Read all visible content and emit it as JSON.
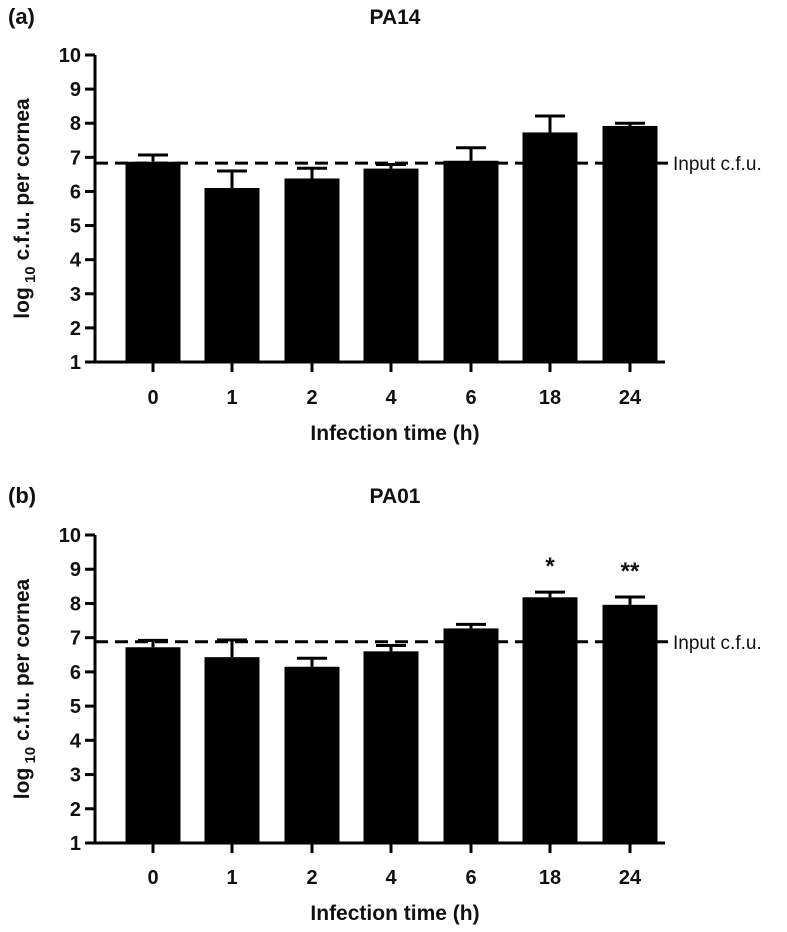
{
  "chart_data": [
    {
      "type": "bar",
      "panel_label": "(a)",
      "title": "PA14",
      "xlabel": "Infection time (h)",
      "ylabel_prefix": "log",
      "ylabel_sub": "10",
      "ylabel_suffix": " c.f.u. per cornea",
      "ylim": [
        1,
        10
      ],
      "yticks": [
        1,
        2,
        3,
        4,
        5,
        6,
        7,
        8,
        9,
        10
      ],
      "categories": [
        "0",
        "1",
        "2",
        "4",
        "6",
        "18",
        "24"
      ],
      "values": [
        6.87,
        6.1,
        6.38,
        6.67,
        6.9,
        7.73,
        7.92
      ],
      "errors": [
        0.2,
        0.5,
        0.3,
        0.12,
        0.38,
        0.48,
        0.08
      ],
      "significance": [
        "",
        "",
        "",
        "",
        "",
        "",
        ""
      ],
      "reference": {
        "value": 6.83,
        "label": "Input c.f.u."
      }
    },
    {
      "type": "bar",
      "panel_label": "(b)",
      "title": "PA01",
      "xlabel": "Infection time (h)",
      "ylabel_prefix": "log",
      "ylabel_sub": "10",
      "ylabel_suffix": " c.f.u. per cornea",
      "ylim": [
        1,
        10
      ],
      "yticks": [
        1,
        2,
        3,
        4,
        5,
        6,
        7,
        8,
        9,
        10
      ],
      "categories": [
        "0",
        "1",
        "2",
        "4",
        "6",
        "18",
        "24"
      ],
      "values": [
        6.72,
        6.43,
        6.15,
        6.6,
        7.27,
        8.18,
        7.96
      ],
      "errors": [
        0.2,
        0.5,
        0.25,
        0.17,
        0.12,
        0.15,
        0.23
      ],
      "significance": [
        "",
        "",
        "",
        "",
        "",
        "*",
        "**"
      ],
      "reference": {
        "value": 6.88,
        "label": "Input c.f.u."
      }
    }
  ]
}
